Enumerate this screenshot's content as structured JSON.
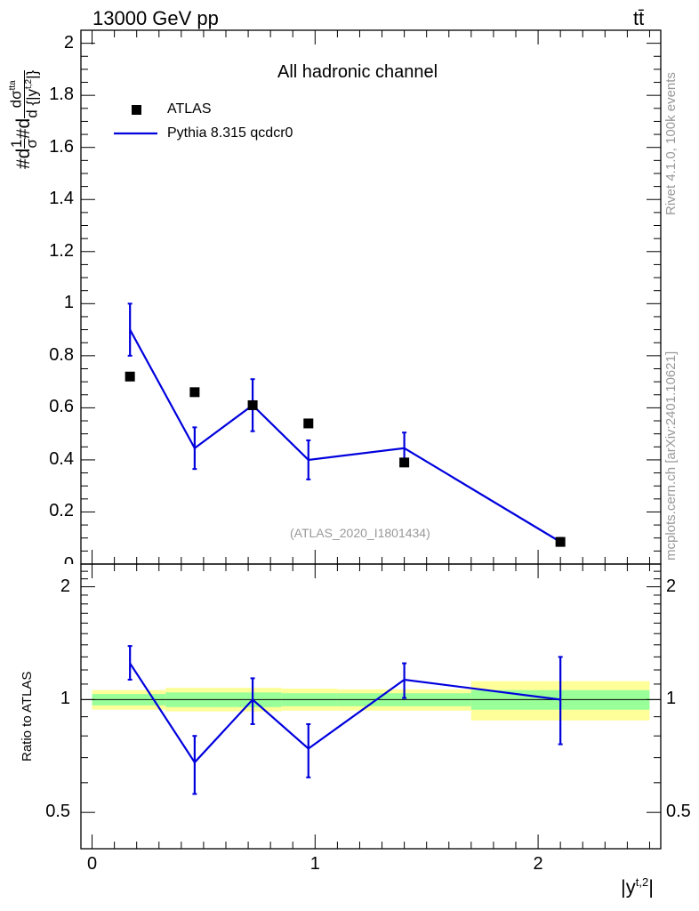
{
  "header": {
    "energy_label": "13000 GeV pp",
    "process_label": "tt̄"
  },
  "side_labels": {
    "rivet": "Rivet 4.1.0,  100k events",
    "mcplots": "mcplots.cern.ch [arXiv:2401.10621]"
  },
  "colors": {
    "mc": "#0000dd",
    "data": "#000000",
    "band_inner": "#99ff99",
    "band_outer": "#ffff99",
    "watermark": "#999999"
  },
  "chart_data": [
    {
      "type": "line",
      "panel": "main",
      "title": "All hadronic channel",
      "analysis_label": "(ATLAS_2020_I1801434)",
      "ylabel": "#d¹⁄σ#d dσᵗᵗᵃ / d {|yᵗʲ²|}",
      "ylabel_parts": [
        "#d",
        "1",
        "σ",
        "#d",
        "dσ",
        "tta",
        "d {|y",
        "t,2",
        "|}"
      ],
      "xlim": [
        -0.05,
        2.55
      ],
      "ylim": [
        0,
        2.05
      ],
      "yticks": [
        0.2,
        0.4,
        0.6,
        0.8,
        1.0,
        1.2,
        1.4,
        1.6,
        1.8,
        2.0
      ],
      "ytick_labels": [
        "0.2",
        "0.4",
        "0.6",
        "0.8",
        "1",
        "1.2",
        "1.4",
        "1.6",
        "1.8",
        "2"
      ],
      "ytick_bottom_label": "0",
      "legend": [
        "ATLAS",
        "Pythia 8.315 qcdcr0"
      ],
      "legend_position": "top-left",
      "series": [
        {
          "name": "ATLAS",
          "style": "markers",
          "x": [
            0.17,
            0.46,
            0.72,
            0.97,
            1.4,
            2.1
          ],
          "y": [
            0.72,
            0.66,
            0.61,
            0.54,
            0.39,
            0.085
          ]
        },
        {
          "name": "Pythia 8.315 qcdcr0",
          "style": "line",
          "x": [
            0.17,
            0.46,
            0.72,
            0.97,
            1.4,
            2.1
          ],
          "y": [
            0.9,
            0.445,
            0.61,
            0.4,
            0.445,
            0.085
          ],
          "err_low": [
            0.1,
            0.08,
            0.1,
            0.075,
            0.06,
            0.015
          ],
          "err_high": [
            0.1,
            0.08,
            0.1,
            0.075,
            0.06,
            0.015
          ]
        }
      ]
    },
    {
      "type": "line",
      "panel": "ratio",
      "ylabel": "Ratio to ATLAS",
      "xlabel": "|y",
      "xlabel_sup": "t,2",
      "xlabel_suffix": "|",
      "xlim": [
        -0.05,
        2.55
      ],
      "ylim": [
        0.4,
        2.3
      ],
      "yscale": "log",
      "xticks": [
        0,
        1,
        2
      ],
      "xtick_labels": [
        "0",
        "1",
        "2"
      ],
      "yticks": [
        0.5,
        1,
        2
      ],
      "ytick_labels": [
        "0.5",
        "1",
        "2"
      ],
      "bands": {
        "bin_edges": [
          0,
          0.33,
          0.55,
          0.85,
          1.1,
          1.7,
          2.5
        ],
        "inner_low": [
          0.965,
          0.955,
          0.955,
          0.96,
          0.96,
          0.94
        ],
        "inner_high": [
          1.035,
          1.045,
          1.045,
          1.04,
          1.04,
          1.06
        ],
        "outer_low": [
          0.94,
          0.93,
          0.93,
          0.935,
          0.935,
          0.88
        ],
        "outer_high": [
          1.06,
          1.075,
          1.075,
          1.07,
          1.065,
          1.12
        ]
      },
      "series": [
        {
          "name": "Pythia 8.315 qcdcr0",
          "x": [
            0.17,
            0.46,
            0.72,
            0.97,
            1.4,
            2.1
          ],
          "y": [
            1.25,
            0.68,
            1.0,
            0.74,
            1.13,
            1.0
          ],
          "err_low": [
            0.12,
            0.12,
            0.14,
            0.12,
            0.12,
            0.24
          ],
          "err_high": [
            0.14,
            0.12,
            0.14,
            0.12,
            0.12,
            0.3
          ]
        }
      ]
    }
  ]
}
